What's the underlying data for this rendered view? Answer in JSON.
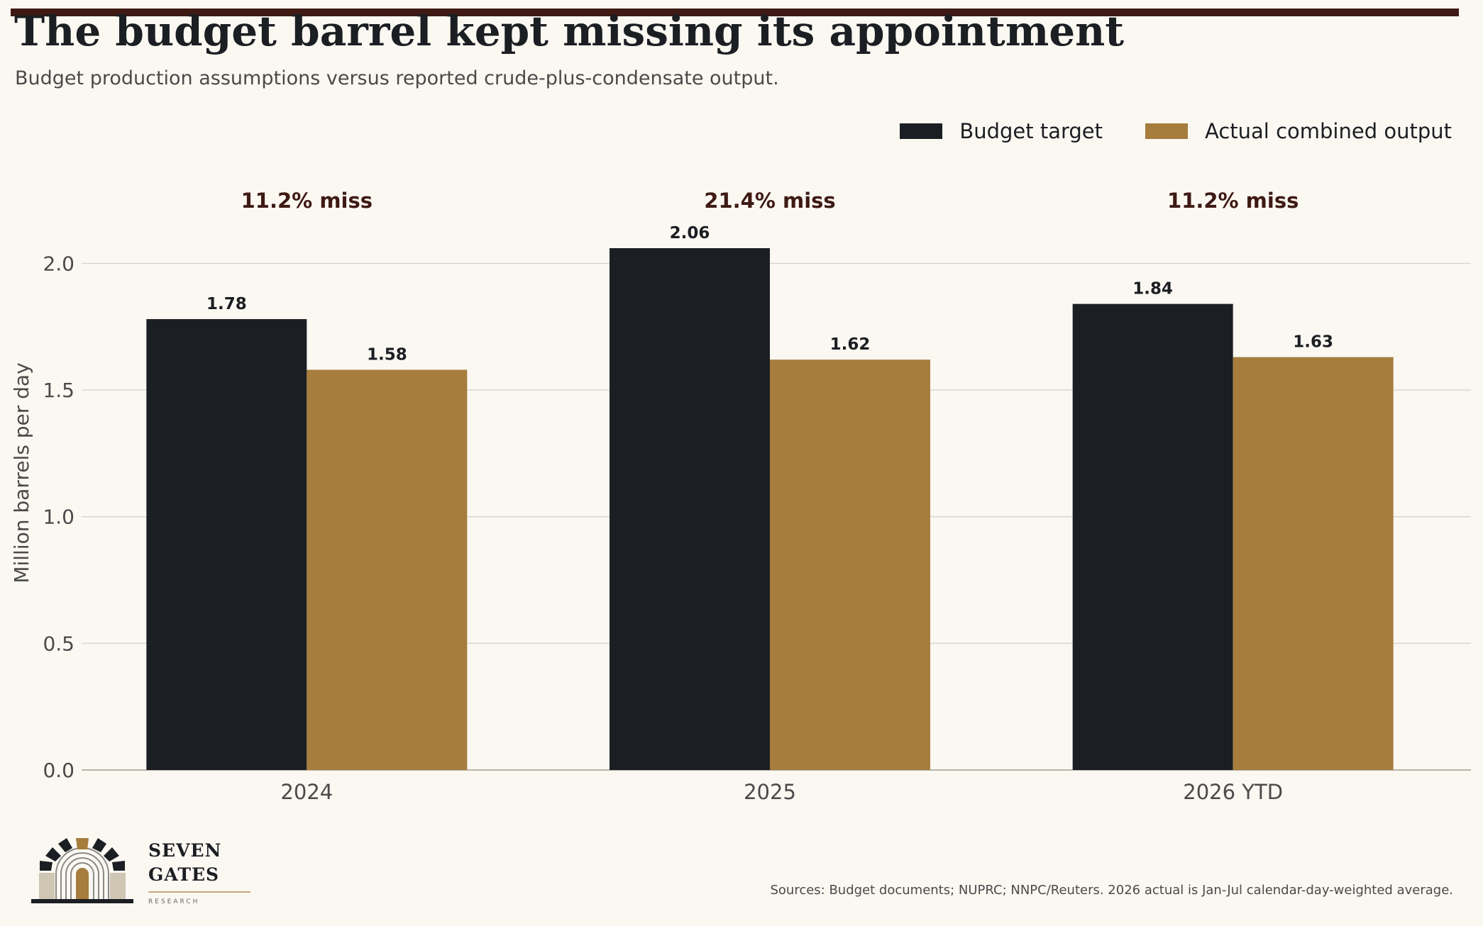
{
  "header": {
    "title": "The budget barrel kept missing its appointment",
    "subtitle": "Budget production assumptions versus reported crude-plus-condensate output."
  },
  "colors": {
    "rule": "#3f1a14",
    "budget": "#1b1f23",
    "actual": "#a67d3d",
    "miss_text": "#3f1a14",
    "grid": "#d9d6d0",
    "axis_text": "#4a4a4a"
  },
  "chart_data": {
    "type": "bar",
    "categories": [
      "2024",
      "2025",
      "2026 YTD"
    ],
    "series": [
      {
        "name": "Budget target",
        "values": [
          1.78,
          2.06,
          1.84
        ]
      },
      {
        "name": "Actual combined output",
        "values": [
          1.58,
          1.62,
          1.63
        ]
      }
    ],
    "value_labels": [
      [
        "1.78",
        "2.06",
        "1.84"
      ],
      [
        "1.58",
        "1.62",
        "1.63"
      ]
    ],
    "annotations": [
      "11.2% miss",
      "21.4% miss",
      "11.2% miss"
    ],
    "ylabel": "Million barrels per day",
    "ylim": [
      0,
      2.2
    ],
    "yticks": [
      0.0,
      0.5,
      1.0,
      1.5,
      2.0
    ],
    "ytick_labels": [
      "0.0",
      "0.5",
      "1.0",
      "1.5",
      "2.0"
    ],
    "grid": true,
    "legend_position": "top-right"
  },
  "footer": {
    "source": "Sources: Budget documents; NUPRC; NNPC/Reuters. 2026 actual is Jan-Jul calendar-day-weighted average.",
    "logo_line1": "SEVEN",
    "logo_line2": "GATES",
    "logo_line3": "RESEARCH"
  }
}
